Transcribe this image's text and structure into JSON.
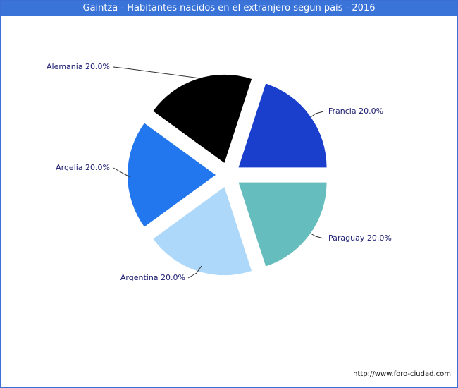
{
  "header": {
    "title": "Gaintza - Habitantes nacidos en el extranjero segun pais - 2016"
  },
  "footer": {
    "source_url": "http://www.foro-ciudad.com"
  },
  "chart_data": {
    "type": "pie",
    "title": "Gaintza - Habitantes nacidos en el extranjero segun pais - 2016",
    "slices": [
      {
        "name": "Francia",
        "value": 20.0,
        "label": "Francia 20.0%",
        "color": "#1a3fcc"
      },
      {
        "name": "Paraguay",
        "value": 20.0,
        "label": "Paraguay 20.0%",
        "color": "#66bdbd"
      },
      {
        "name": "Argentina",
        "value": 20.0,
        "label": "Argentina 20.0%",
        "color": "#add8fa"
      },
      {
        "name": "Argelia",
        "value": 20.0,
        "label": "Argelia 20.0%",
        "color": "#2277ee"
      },
      {
        "name": "Alemania",
        "value": 20.0,
        "label": "Alemania 20.0%",
        "color": "#000000"
      }
    ],
    "exploded": true,
    "legend": "none",
    "leader_line_color": "#333333"
  }
}
